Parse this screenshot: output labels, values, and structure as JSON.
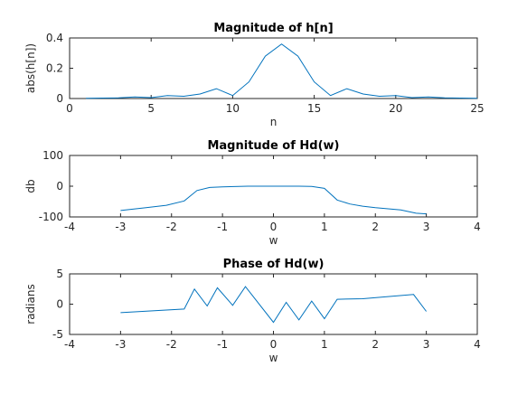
{
  "chart_data": [
    {
      "type": "line",
      "title": "Magnitude of h[n]",
      "xlabel": "n",
      "ylabel": "abs(h[n])",
      "xlim": [
        0,
        25
      ],
      "ylim": [
        0,
        0.4
      ],
      "xticks": [
        0,
        5,
        10,
        15,
        20,
        25
      ],
      "xtick_labels": [
        "0",
        "5",
        "10",
        "15",
        "20",
        "25"
      ],
      "yticks": [
        0,
        0.2,
        0.4
      ],
      "ytick_labels": [
        "0",
        "0.2",
        "0.4"
      ],
      "grid": false,
      "color": "#0072BD",
      "x": [
        1,
        2,
        3,
        4,
        5,
        6,
        7,
        8,
        9,
        10,
        11,
        12,
        13,
        14,
        15,
        16,
        17,
        18,
        19,
        20,
        21,
        22,
        23,
        24,
        25
      ],
      "y": [
        0.002,
        0.003,
        0.004,
        0.01,
        0.006,
        0.02,
        0.015,
        0.03,
        0.065,
        0.02,
        0.11,
        0.28,
        0.36,
        0.28,
        0.11,
        0.02,
        0.065,
        0.03,
        0.015,
        0.02,
        0.006,
        0.01,
        0.004,
        0.003,
        0.002
      ]
    },
    {
      "type": "line",
      "title": "Magnitude of Hd(w)",
      "xlabel": "w",
      "ylabel": "db",
      "xlim": [
        -4,
        4
      ],
      "ylim": [
        -100,
        100
      ],
      "xticks": [
        -4,
        -3,
        -2,
        -1,
        0,
        1,
        2,
        3,
        4
      ],
      "xtick_labels": [
        "-4",
        "-3",
        "-2",
        "-1",
        "0",
        "1",
        "2",
        "3",
        "4"
      ],
      "yticks": [
        -100,
        0,
        100
      ],
      "ytick_labels": [
        "-100",
        "0",
        "100"
      ],
      "grid": false,
      "color": "#0072BD",
      "x": [
        -3.0,
        -2.5,
        -2.1,
        -1.75,
        -1.5,
        -1.25,
        -1.0,
        -0.5,
        0.0,
        0.5,
        0.75,
        1.0,
        1.25,
        1.5,
        1.75,
        2.0,
        2.5,
        2.8,
        3.0
      ],
      "y": [
        -79,
        -70,
        -62,
        -48,
        -14,
        -4,
        -2,
        0,
        0,
        0,
        -1,
        -7,
        -45,
        -58,
        -65,
        -70,
        -77,
        -88,
        -90
      ]
    },
    {
      "type": "line",
      "title": "Phase of Hd(w)",
      "xlabel": "w",
      "ylabel": "radians",
      "xlim": [
        -4,
        4
      ],
      "ylim": [
        -5,
        5
      ],
      "xticks": [
        -4,
        -3,
        -2,
        -1,
        0,
        1,
        2,
        3,
        4
      ],
      "xtick_labels": [
        "-4",
        "-3",
        "-2",
        "-1",
        "0",
        "1",
        "2",
        "3",
        "4"
      ],
      "yticks": [
        -5,
        0,
        5
      ],
      "ytick_labels": [
        "-5",
        "0",
        "5"
      ],
      "grid": false,
      "color": "#0072BD",
      "x": [
        -3.0,
        -1.75,
        -1.55,
        -1.3,
        -1.1,
        -0.8,
        -0.55,
        0.0,
        0.25,
        0.5,
        0.75,
        1.0,
        1.25,
        1.75,
        2.75,
        3.0
      ],
      "y": [
        -1.4,
        -0.8,
        2.5,
        -0.3,
        2.7,
        -0.2,
        2.9,
        -3.0,
        0.3,
        -2.6,
        0.5,
        -2.4,
        0.8,
        0.9,
        1.6,
        -1.2
      ]
    }
  ]
}
